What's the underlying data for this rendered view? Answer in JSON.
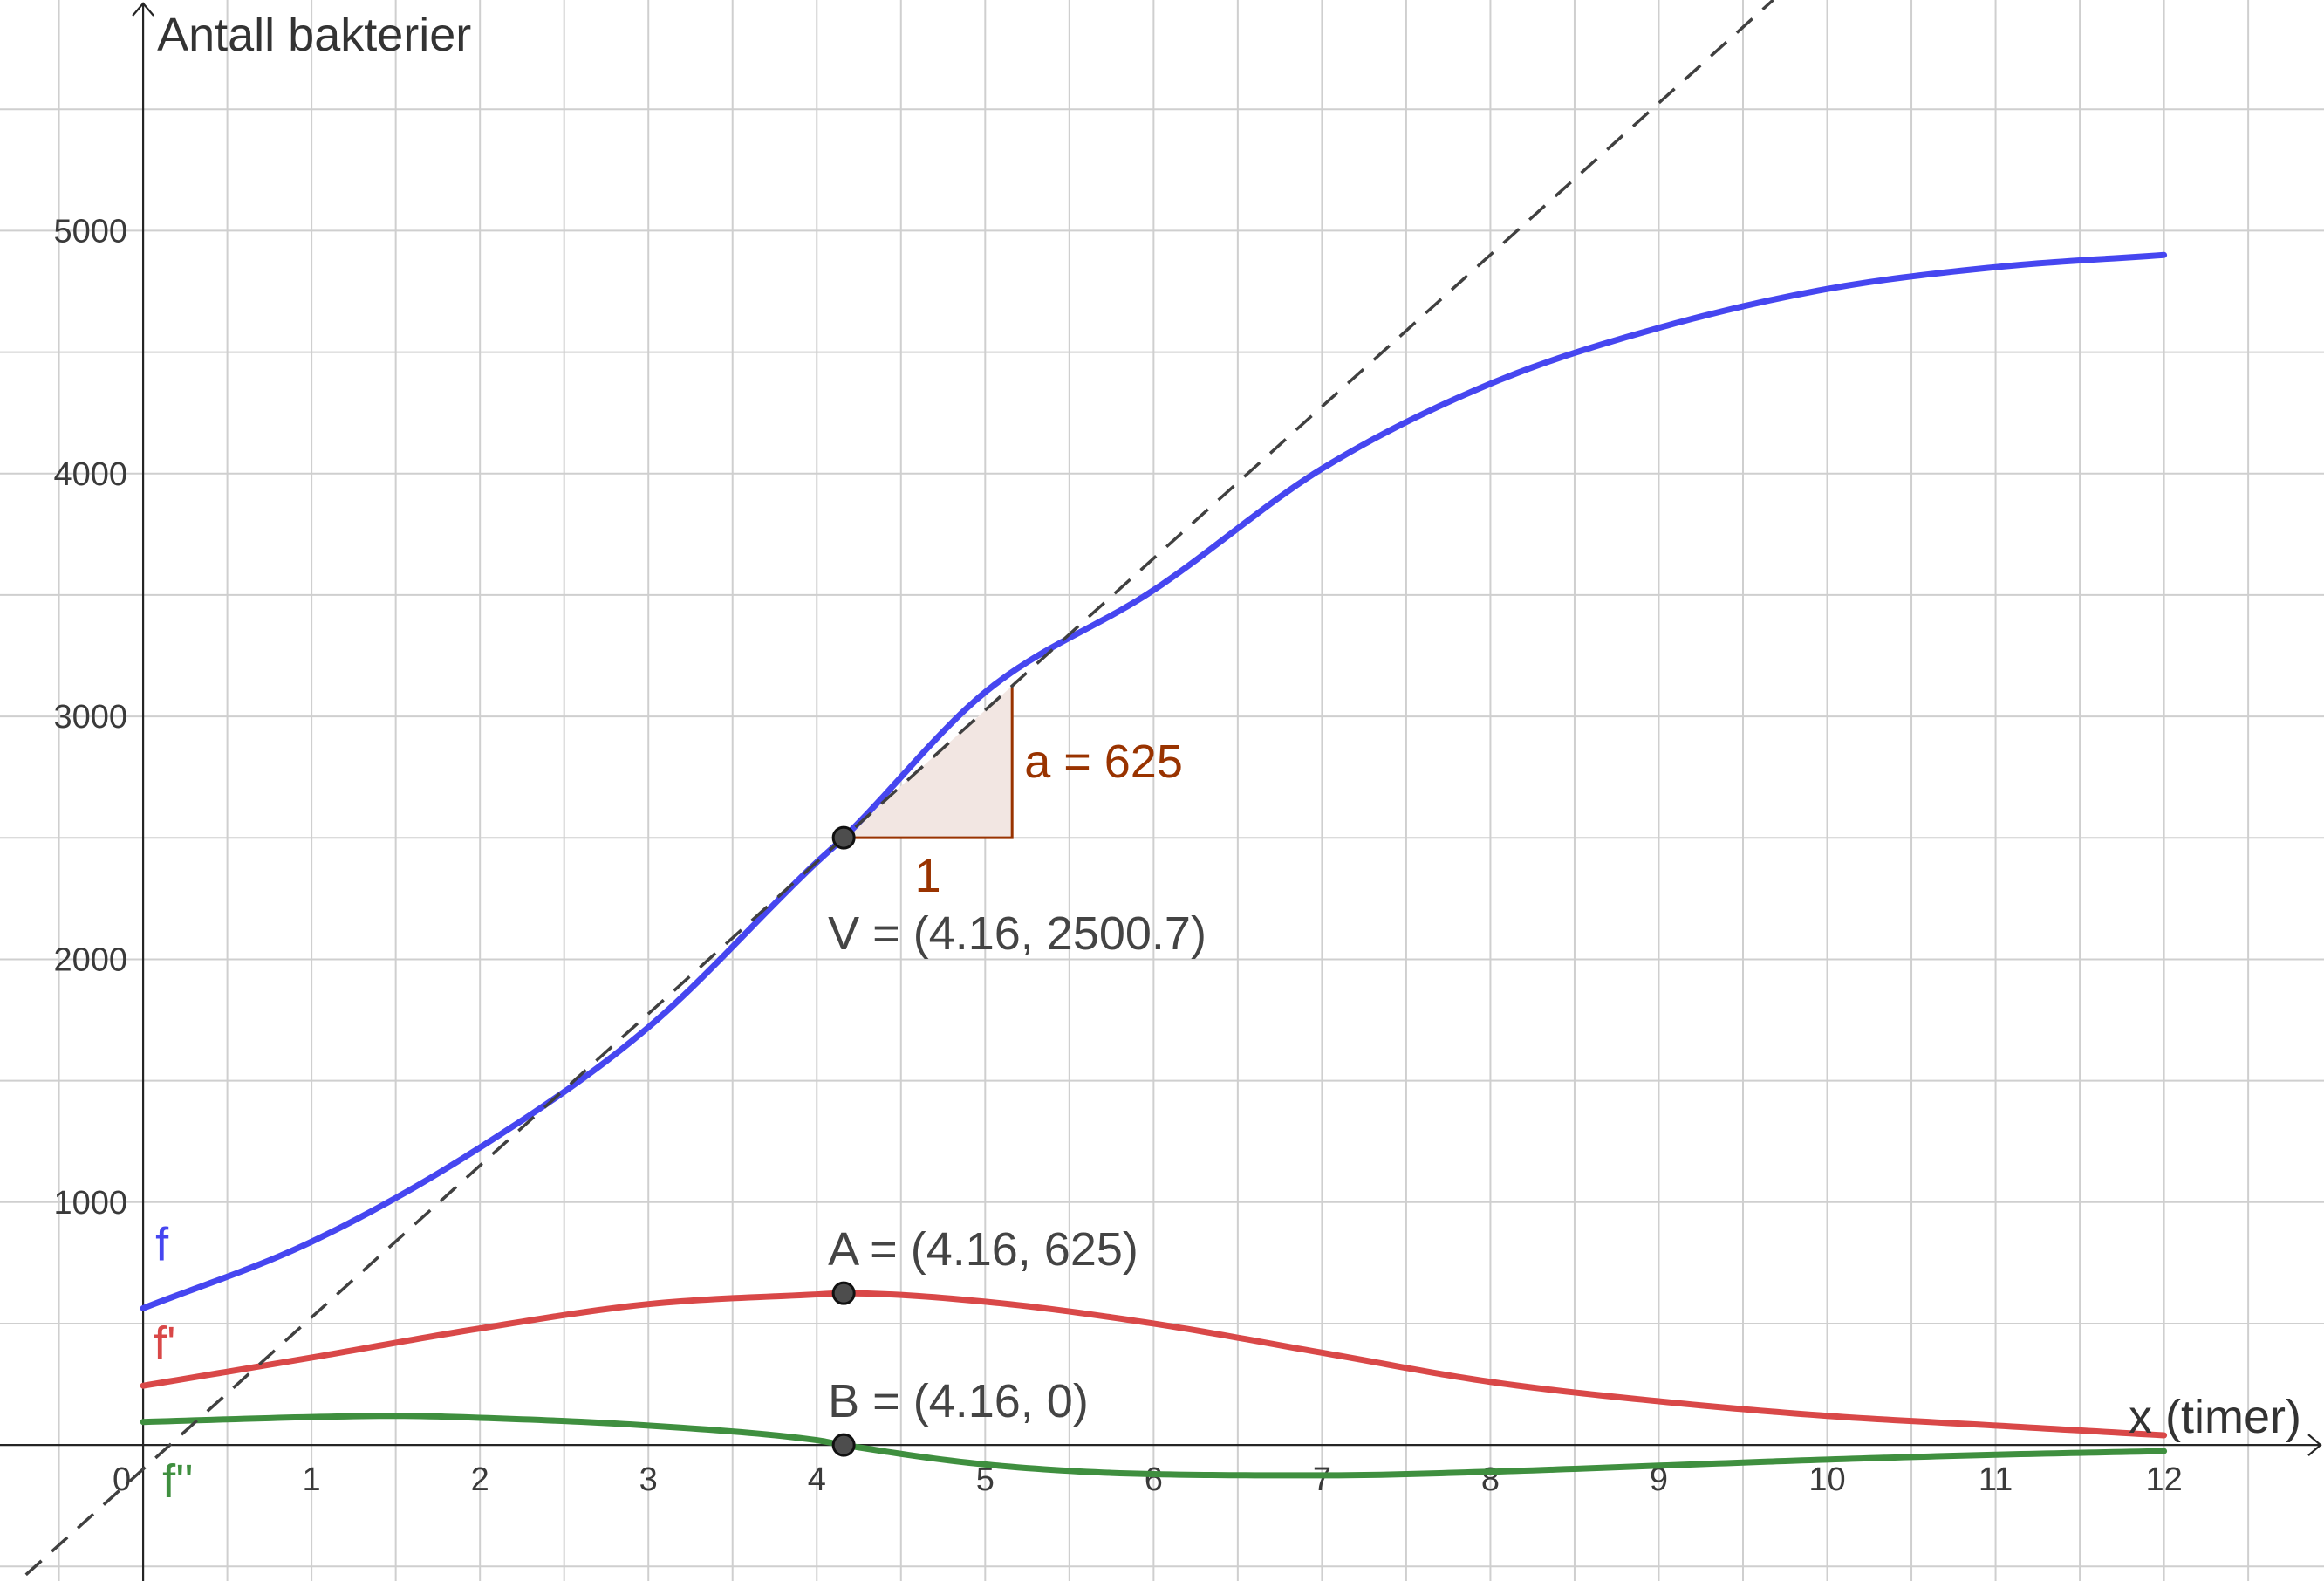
{
  "chart_data": {
    "type": "line",
    "ylabel": "Antall bakterier",
    "xlabel": "x (timer)",
    "xlim": [
      -0.85,
      12.95
    ],
    "ylim": [
      -560,
      5950
    ],
    "x_ticks": [
      0,
      1,
      2,
      3,
      4,
      5,
      6,
      7,
      8,
      9,
      10,
      11,
      12
    ],
    "x_tick_labels": [
      "0",
      "1",
      "2",
      "3",
      "4",
      "5",
      "6",
      "7",
      "8",
      "9",
      "10",
      "11",
      "12"
    ],
    "y_ticks": [
      1000,
      2000,
      3000,
      4000,
      5000
    ],
    "y_tick_labels": [
      "1000",
      "2000",
      "3000",
      "4000",
      "5000"
    ],
    "grid": true,
    "x_range_plotted": [
      0,
      12
    ],
    "series": [
      {
        "name": "f",
        "color": "#4646f0",
        "x": [
          0,
          1,
          2,
          3,
          4,
          4.16,
          5,
          6,
          7,
          8,
          9,
          10,
          11,
          12
        ],
        "y": [
          563,
          837,
          1225,
          1720,
          2400,
          2500.7,
          3100,
          3520,
          4020,
          4370,
          4600,
          4760,
          4850,
          4900
        ]
      },
      {
        "name": "f'",
        "color": "#d94848",
        "x": [
          0,
          1,
          2,
          3,
          4,
          4.16,
          5,
          6,
          7,
          8,
          9,
          10,
          11,
          12
        ],
        "y": [
          244,
          360,
          480,
          580,
          620,
          625,
          590,
          500,
          380,
          260,
          180,
          120,
          80,
          40
        ]
      },
      {
        "name": "f''",
        "color": "#3f8f3f",
        "x": [
          0,
          1,
          1.5,
          2,
          3,
          4,
          4.16,
          5,
          6,
          7,
          8,
          9,
          10,
          11,
          12
        ],
        "y": [
          95,
          115,
          120,
          112,
          80,
          20,
          0,
          -80,
          -120,
          -125,
          -110,
          -85,
          -60,
          -40,
          -25
        ]
      }
    ],
    "tangent": {
      "color": "#404040",
      "through": [
        4.16,
        2500.7
      ],
      "slope": 625
    },
    "slope_triangle": {
      "run_label": "1",
      "rise_label": "a = 625",
      "color": "#993300",
      "fill": "#f2e6e2"
    },
    "points": [
      {
        "id": "V",
        "x": 4.16,
        "y": 2500.7,
        "label": "V = (4.16, 2500.7)"
      },
      {
        "id": "A",
        "x": 4.16,
        "y": 625,
        "label": "A = (4.16, 625)"
      },
      {
        "id": "B",
        "x": 4.16,
        "y": 0,
        "label": "B = (4.16, 0)"
      }
    ]
  }
}
